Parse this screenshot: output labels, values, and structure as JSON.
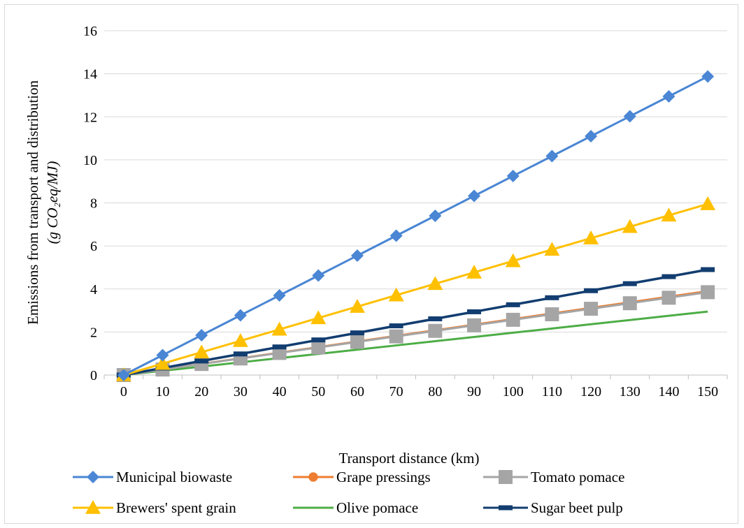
{
  "chart_data": {
    "type": "line",
    "title": "",
    "xlabel": "Transport distance (km)",
    "ylabel_line1": "Emissions from transport and distribution",
    "ylabel_line2": "(g CO₂eq/MJ)",
    "x": [
      0,
      10,
      20,
      30,
      40,
      50,
      60,
      70,
      80,
      90,
      100,
      110,
      120,
      130,
      140,
      150
    ],
    "ylim": [
      0,
      16
    ],
    "yticks": [
      0,
      2,
      4,
      6,
      8,
      10,
      12,
      14,
      16
    ],
    "grid": "horizontal",
    "legend_position": "bottom",
    "series": [
      {
        "name": "Municipal biowaste",
        "color": "#4a86d4",
        "marker": "diamond",
        "values": [
          0,
          0.925,
          1.85,
          2.775,
          3.7,
          4.625,
          5.55,
          6.475,
          7.4,
          8.325,
          9.25,
          10.175,
          11.1,
          12.025,
          12.95,
          13.875
        ]
      },
      {
        "name": "Grape pressings",
        "color": "#ed7d31",
        "marker": "circle",
        "values": [
          0,
          0.26,
          0.52,
          0.78,
          1.04,
          1.3,
          1.56,
          1.82,
          2.08,
          2.34,
          2.6,
          2.86,
          3.12,
          3.38,
          3.64,
          3.9
        ]
      },
      {
        "name": "Tomato pomace",
        "color": "#a5a5a5",
        "marker": "square",
        "values": [
          0,
          0.257,
          0.513,
          0.77,
          1.027,
          1.283,
          1.54,
          1.797,
          2.053,
          2.31,
          2.567,
          2.823,
          3.08,
          3.337,
          3.593,
          3.85
        ]
      },
      {
        "name": "Brewers' spent grain",
        "color": "#ffc000",
        "marker": "triangle",
        "values": [
          0,
          0.53,
          1.06,
          1.59,
          2.12,
          2.65,
          3.18,
          3.71,
          4.24,
          4.77,
          5.3,
          5.83,
          6.36,
          6.89,
          7.42,
          7.95
        ]
      },
      {
        "name": "Olive pomace",
        "color": "#4dad46",
        "marker": "none",
        "values": [
          0,
          0.197,
          0.393,
          0.59,
          0.787,
          0.983,
          1.18,
          1.377,
          1.573,
          1.77,
          1.967,
          2.163,
          2.36,
          2.557,
          2.753,
          2.95
        ]
      },
      {
        "name": "Sugar beet pulp",
        "color": "#123d70",
        "marker": "dash",
        "values": [
          0,
          0.327,
          0.653,
          0.98,
          1.307,
          1.633,
          1.96,
          2.287,
          2.613,
          2.94,
          3.267,
          3.593,
          3.92,
          4.247,
          4.573,
          4.9
        ]
      }
    ]
  }
}
